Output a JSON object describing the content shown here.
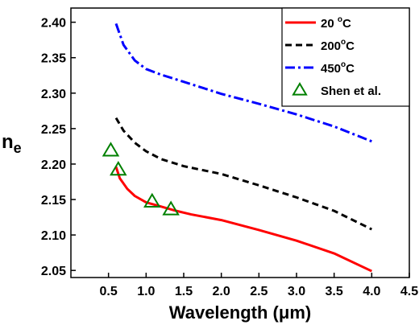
{
  "chart_data": {
    "type": "line",
    "xlabel": "Wavelength (μm)",
    "ylabel": "n",
    "ylabel_subscript": "e",
    "xlim": [
      0.0,
      4.5
    ],
    "ylim": [
      2.04,
      2.42
    ],
    "x_ticks": [
      "0.5",
      "1.0",
      "1.5",
      "2.0",
      "2.5",
      "3.0",
      "3.5",
      "4.0",
      "4.5"
    ],
    "y_ticks": [
      "2.05",
      "2.10",
      "2.15",
      "2.20",
      "2.25",
      "2.30",
      "2.35",
      "2.40"
    ],
    "legend_position": "top-right",
    "grid": false,
    "series": [
      {
        "name": "20 °C",
        "name_parts": [
          "20 ",
          "o",
          "C"
        ],
        "style": "solid",
        "color": "#ff0000",
        "x": [
          0.6,
          0.65,
          0.75,
          0.85,
          1.0,
          1.2,
          1.4,
          1.6,
          2.0,
          2.5,
          3.0,
          3.5,
          4.0
        ],
        "y": [
          2.196,
          2.18,
          2.165,
          2.155,
          2.146,
          2.14,
          2.134,
          2.129,
          2.121,
          2.107,
          2.092,
          2.074,
          2.049
        ]
      },
      {
        "name": "200°C",
        "name_parts": [
          "200",
          "o",
          "C"
        ],
        "style": "dashed",
        "color": "#000000",
        "x": [
          0.6,
          0.7,
          0.85,
          1.0,
          1.2,
          1.5,
          2.0,
          2.5,
          3.0,
          3.5,
          4.0
        ],
        "y": [
          2.265,
          2.247,
          2.23,
          2.218,
          2.207,
          2.197,
          2.186,
          2.17,
          2.153,
          2.134,
          2.108
        ]
      },
      {
        "name": "450°C",
        "name_parts": [
          "450",
          "o",
          "C"
        ],
        "style": "dashdot",
        "color": "#0000ff",
        "x": [
          0.6,
          0.7,
          0.85,
          1.0,
          1.2,
          1.5,
          2.0,
          2.5,
          3.0,
          3.5,
          4.0
        ],
        "y": [
          2.398,
          2.368,
          2.346,
          2.334,
          2.326,
          2.316,
          2.299,
          2.285,
          2.27,
          2.253,
          2.232
        ]
      },
      {
        "name": "Shen et al.",
        "name_parts": [
          "Shen et al."
        ],
        "style": "markers",
        "marker": "open-triangle",
        "color": "#008000",
        "x": [
          0.53,
          0.63,
          1.08,
          1.33
        ],
        "y": [
          2.219,
          2.192,
          2.147,
          2.136
        ]
      }
    ]
  }
}
